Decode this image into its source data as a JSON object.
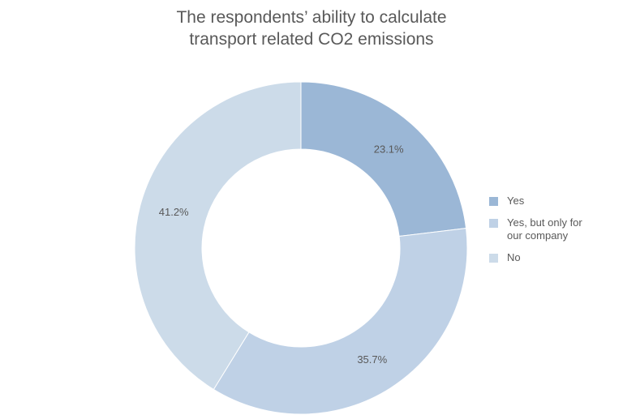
{
  "chart_data": {
    "type": "pie",
    "variant": "donut",
    "title_lines": [
      "The respondents’ ability to calculate",
      "transport related CO2 emissions"
    ],
    "slices": [
      {
        "label": "Yes",
        "value": 23.1,
        "data_label": "23.1%",
        "color": "#9bb7d6"
      },
      {
        "label": "Yes, but only for our company",
        "value": 35.7,
        "data_label": "35.7%",
        "color": "#bfd1e6"
      },
      {
        "label": "No",
        "value": 41.2,
        "data_label": "41.2%",
        "color": "#ccdbe9"
      }
    ],
    "legend": {
      "placement": "right",
      "entries": [
        {
          "lines": [
            "Yes"
          ],
          "color": "#9bb7d6"
        },
        {
          "lines": [
            "Yes, but only for",
            "our company"
          ],
          "color": "#bfd1e6"
        },
        {
          "lines": [
            "No"
          ],
          "color": "#ccdbe9"
        }
      ]
    }
  }
}
